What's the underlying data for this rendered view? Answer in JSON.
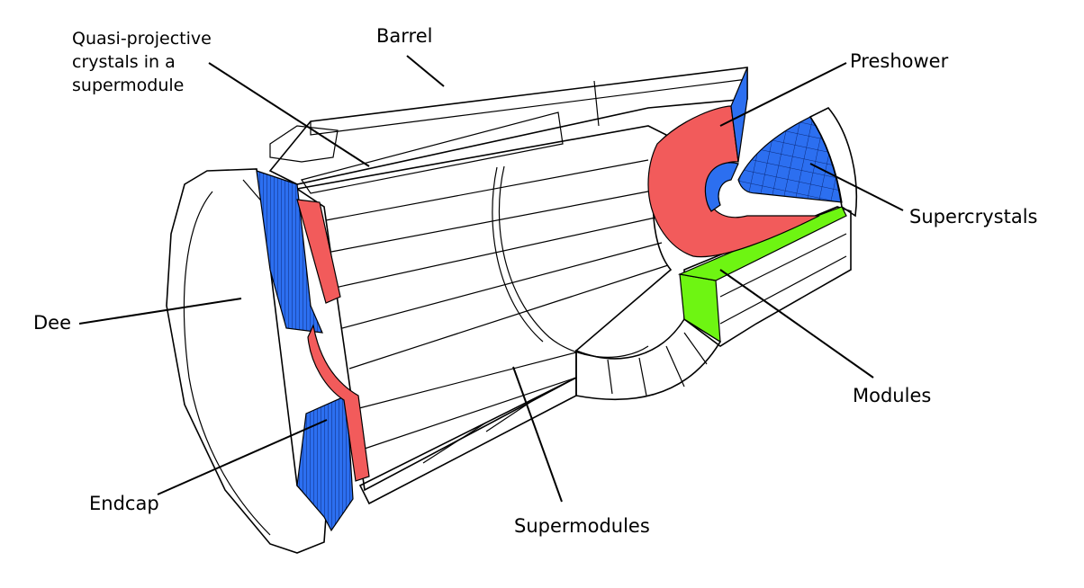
{
  "labels": {
    "quasi_projective": [
      "Quasi-projective",
      "crystals in a",
      "supermodule"
    ],
    "barrel": "Barrel",
    "preshower": "Preshower",
    "supercrystals": "Supercrystals",
    "dee": "Dee",
    "modules": "Modules",
    "endcap": "Endcap",
    "supermodules": "Supermodules"
  },
  "colors": {
    "red": "#f25b5b",
    "blue": "#2c6ff0",
    "green": "#6ef512",
    "outline": "#000000",
    "fill": "#ffffff"
  }
}
